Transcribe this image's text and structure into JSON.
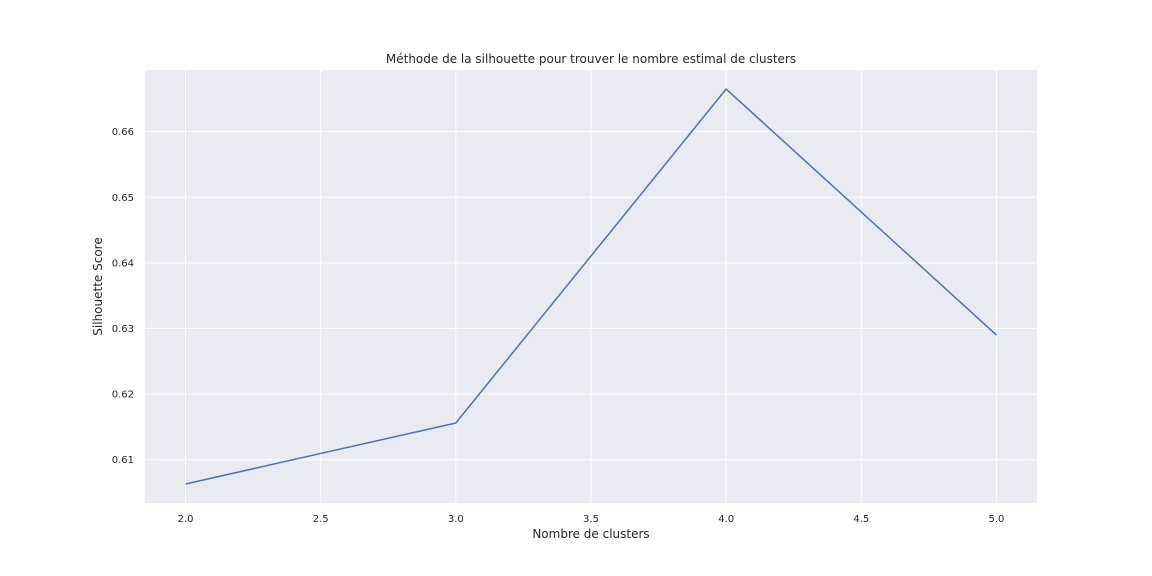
{
  "chart_data": {
    "type": "line",
    "title": "Méthode de la silhouette pour trouver le nombre estimal de clusters",
    "xlabel": "Nombre de clusters",
    "ylabel": "Silhouette Score",
    "x": [
      2,
      3,
      4,
      5
    ],
    "series": [
      {
        "values": [
          0.6063,
          0.6156,
          0.6665,
          0.629
        ]
      }
    ],
    "xlim": [
      1.85,
      5.15
    ],
    "ylim": [
      0.6034,
      0.6694
    ],
    "xticks": [
      2.0,
      2.5,
      3.0,
      3.5,
      4.0,
      4.5,
      5.0
    ],
    "xtick_labels": [
      "2.0",
      "2.5",
      "3.0",
      "3.5",
      "4.0",
      "4.5",
      "5.0"
    ],
    "yticks": [
      0.61,
      0.62,
      0.63,
      0.64,
      0.65,
      0.66
    ],
    "ytick_labels": [
      "0.61",
      "0.62",
      "0.63",
      "0.64",
      "0.65",
      "0.66"
    ],
    "grid": true,
    "colors": {
      "plot_background": "#eaeaf2",
      "grid": "#ffffff",
      "line": "#4c72b0",
      "text": "#262626"
    }
  }
}
